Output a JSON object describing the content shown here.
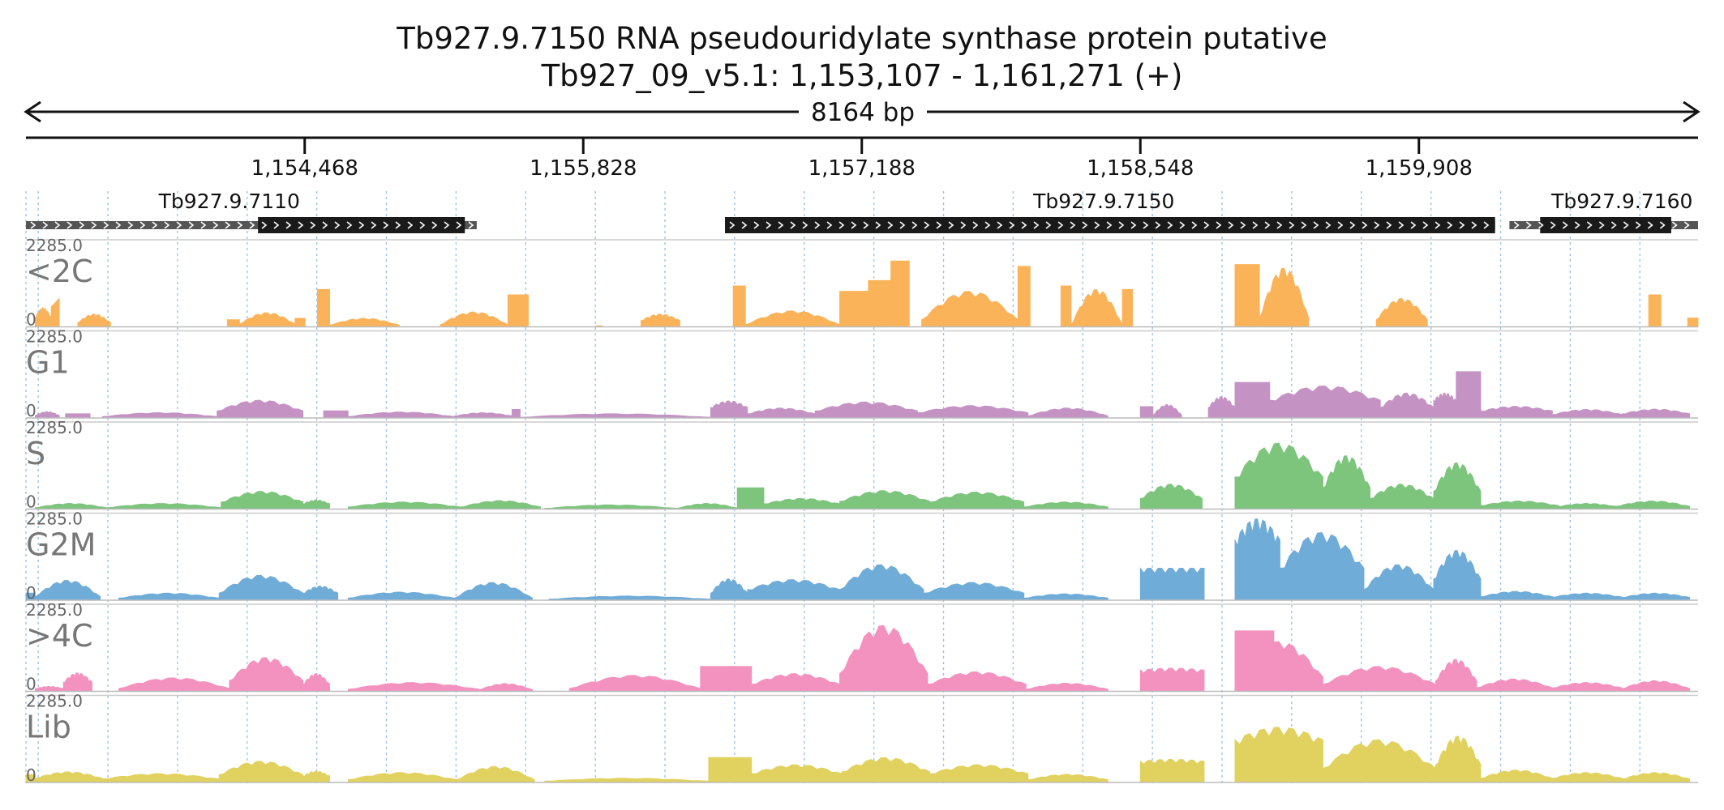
{
  "chart_data": {
    "type": "area",
    "title": "Tb927.9.7150  RNA pseudouridylate synthase protein  putative",
    "subtitle": "Tb927_09_v5.1: 1,153,107 - 1,161,271 (+)",
    "span_label": "8164 bp",
    "x_range": [
      1153107,
      1161271
    ],
    "ticks": [
      {
        "pos": 1154468,
        "label": "1,154,468"
      },
      {
        "pos": 1155828,
        "label": "1,155,828"
      },
      {
        "pos": 1157188,
        "label": "1,157,188"
      },
      {
        "pos": 1158548,
        "label": "1,158,548"
      },
      {
        "pos": 1159908,
        "label": "1,159,908"
      }
    ],
    "genes": [
      {
        "name": "Tb927.9.7110",
        "start": 1153107,
        "end": 1155308,
        "cds_start": 1154240,
        "cds_end": 1155250,
        "label_pos": 1154100
      },
      {
        "name": "Tb927.9.7150",
        "start": 1156520,
        "end": 1160280,
        "cds_start": 1156520,
        "cds_end": 1160280,
        "label_pos": 1158370
      },
      {
        "name": "Tb927.9.7160",
        "start": 1160350,
        "end": 1161271,
        "cds_start": 1160500,
        "cds_end": 1161140,
        "label_pos": 1160900
      }
    ],
    "ylim": [
      0,
      2285.0
    ],
    "scale_max_label": "2285.0",
    "scale_min_label": "0",
    "tracks": [
      {
        "name": "<2C",
        "color": "#fbb35a",
        "segments": [
          [
            1153152,
            1153230,
            260,
            540,
            "hump"
          ],
          [
            1153230,
            1153270,
            560,
            800,
            "edge"
          ],
          [
            1153360,
            1153520,
            120,
            360,
            "hump"
          ],
          [
            1154090,
            1154150,
            200,
            200,
            "flat"
          ],
          [
            1154150,
            1154420,
            80,
            400,
            "hump"
          ],
          [
            1154420,
            1154470,
            240,
            240,
            "flat"
          ],
          [
            1154530,
            1154590,
            1050,
            1050,
            "flat"
          ],
          [
            1154590,
            1154930,
            50,
            240,
            "hump"
          ],
          [
            1155130,
            1155460,
            60,
            420,
            "hump"
          ],
          [
            1155460,
            1155560,
            900,
            900,
            "flat"
          ],
          [
            1155890,
            1155920,
            30,
            30,
            "flat"
          ],
          [
            1156110,
            1156300,
            180,
            360,
            "hump"
          ],
          [
            1156560,
            1156620,
            1150,
            1150,
            "flat"
          ],
          [
            1156620,
            1157080,
            60,
            450,
            "hump"
          ],
          [
            1157080,
            1157220,
            1000,
            1000,
            "flat"
          ],
          [
            1157220,
            1157330,
            1300,
            1300,
            "flat"
          ],
          [
            1157330,
            1157420,
            1850,
            1850,
            "flat"
          ],
          [
            1157480,
            1157950,
            200,
            1000,
            "hump"
          ],
          [
            1157950,
            1158010,
            1700,
            1700,
            "flat"
          ],
          [
            1158160,
            1158210,
            1150,
            1150,
            "flat"
          ],
          [
            1158210,
            1158460,
            50,
            1050,
            "hump"
          ],
          [
            1158460,
            1158510,
            1050,
            1050,
            "flat"
          ],
          [
            1159010,
            1159130,
            1750,
            1750,
            "flat"
          ],
          [
            1159130,
            1159370,
            250,
            1650,
            "hump"
          ],
          [
            1159700,
            1159950,
            200,
            800,
            "hump"
          ],
          [
            1161030,
            1161090,
            900,
            900,
            "flat"
          ],
          [
            1161220,
            1161271,
            250,
            250,
            "flat"
          ]
        ]
      },
      {
        "name": "G1",
        "color": "#c493c4",
        "segments": [
          [
            1153152,
            1153270,
            70,
            180,
            "hump"
          ],
          [
            1153300,
            1153420,
            120,
            120,
            "flat"
          ],
          [
            1153480,
            1154040,
            40,
            150,
            "hump"
          ],
          [
            1154040,
            1154460,
            200,
            500,
            "hump"
          ],
          [
            1154560,
            1154680,
            200,
            200,
            "flat"
          ],
          [
            1154680,
            1155200,
            40,
            170,
            "hump"
          ],
          [
            1155200,
            1155480,
            60,
            150,
            "hump"
          ],
          [
            1155480,
            1155520,
            240,
            240,
            "flat"
          ],
          [
            1155520,
            1156450,
            20,
            120,
            "hump"
          ],
          [
            1156450,
            1156630,
            300,
            480,
            "hump"
          ],
          [
            1156630,
            1156960,
            120,
            280,
            "hump"
          ],
          [
            1156960,
            1157460,
            200,
            450,
            "hump"
          ],
          [
            1157460,
            1158000,
            150,
            350,
            "hump"
          ],
          [
            1158000,
            1158390,
            60,
            280,
            "hump"
          ],
          [
            1158548,
            1158610,
            320,
            320,
            "flat"
          ],
          [
            1158610,
            1158750,
            80,
            380,
            "hump"
          ],
          [
            1158880,
            1159010,
            300,
            600,
            "hump"
          ],
          [
            1159010,
            1159180,
            1000,
            1000,
            "flat"
          ],
          [
            1159180,
            1159720,
            500,
            900,
            "hump"
          ],
          [
            1159720,
            1159980,
            300,
            700,
            "hump"
          ],
          [
            1159980,
            1160090,
            500,
            700,
            "hump"
          ],
          [
            1160090,
            1160210,
            1300,
            1300,
            "flat"
          ],
          [
            1160210,
            1160560,
            200,
            330,
            "hump"
          ],
          [
            1160560,
            1160900,
            100,
            240,
            "hump"
          ],
          [
            1160900,
            1161230,
            120,
            250,
            "hump"
          ]
        ]
      },
      {
        "name": "S",
        "color": "#7dc47d",
        "segments": [
          [
            1153152,
            1153500,
            40,
            160,
            "hump"
          ],
          [
            1153500,
            1154060,
            40,
            160,
            "hump"
          ],
          [
            1154060,
            1154460,
            200,
            500,
            "hump"
          ],
          [
            1154460,
            1154590,
            150,
            260,
            "hump"
          ],
          [
            1154680,
            1155230,
            60,
            200,
            "hump"
          ],
          [
            1155230,
            1155620,
            60,
            240,
            "hump"
          ],
          [
            1155640,
            1156290,
            20,
            120,
            "hump"
          ],
          [
            1156290,
            1156580,
            30,
            160,
            "hump"
          ],
          [
            1156580,
            1156710,
            600,
            600,
            "flat"
          ],
          [
            1156710,
            1157080,
            150,
            300,
            "hump"
          ],
          [
            1157080,
            1157520,
            220,
            520,
            "hump"
          ],
          [
            1157520,
            1157980,
            200,
            480,
            "hump"
          ],
          [
            1157980,
            1158390,
            60,
            200,
            "hump"
          ],
          [
            1158548,
            1158850,
            300,
            700,
            "hump"
          ],
          [
            1159010,
            1159440,
            900,
            1850,
            "hump"
          ],
          [
            1159440,
            1159670,
            600,
            1500,
            "hump"
          ],
          [
            1159670,
            1159980,
            300,
            700,
            "hump"
          ],
          [
            1159980,
            1160210,
            500,
            1300,
            "hump"
          ],
          [
            1160210,
            1160590,
            100,
            230,
            "hump"
          ],
          [
            1160590,
            1160870,
            80,
            160,
            "hump"
          ],
          [
            1160870,
            1161230,
            80,
            230,
            "hump"
          ]
        ]
      },
      {
        "name": "G2M",
        "color": "#6facd8",
        "segments": [
          [
            1153107,
            1153152,
            200,
            200,
            "flat"
          ],
          [
            1153152,
            1153470,
            100,
            560,
            "hump"
          ],
          [
            1153560,
            1154050,
            60,
            200,
            "hump"
          ],
          [
            1154050,
            1154460,
            200,
            700,
            "hump"
          ],
          [
            1154460,
            1154630,
            200,
            400,
            "hump"
          ],
          [
            1154680,
            1155200,
            60,
            230,
            "hump"
          ],
          [
            1155200,
            1155580,
            60,
            500,
            "hump"
          ],
          [
            1155660,
            1156450,
            30,
            120,
            "hump"
          ],
          [
            1156450,
            1156630,
            200,
            600,
            "hump"
          ],
          [
            1156630,
            1157080,
            300,
            580,
            "hump"
          ],
          [
            1157080,
            1157490,
            300,
            1000,
            "hump"
          ],
          [
            1157490,
            1157980,
            200,
            500,
            "hump"
          ],
          [
            1157980,
            1158390,
            60,
            180,
            "hump"
          ],
          [
            1158548,
            1158860,
            900,
            900,
            "hump"
          ],
          [
            1159010,
            1159230,
            1700,
            2285,
            "hump"
          ],
          [
            1159230,
            1159640,
            900,
            1900,
            "hump"
          ],
          [
            1159640,
            1159980,
            300,
            1000,
            "hump"
          ],
          [
            1159980,
            1160210,
            600,
            1400,
            "hump"
          ],
          [
            1160210,
            1160560,
            100,
            250,
            "hump"
          ],
          [
            1160560,
            1160900,
            90,
            200,
            "hump"
          ],
          [
            1160900,
            1161230,
            80,
            200,
            "hump"
          ]
        ]
      },
      {
        "name": ">4C",
        "color": "#f492bf",
        "segments": [
          [
            1153152,
            1153290,
            80,
            140,
            "hump"
          ],
          [
            1153290,
            1153430,
            260,
            520,
            "hump"
          ],
          [
            1153560,
            1154100,
            80,
            380,
            "hump"
          ],
          [
            1154100,
            1154460,
            300,
            950,
            "hump"
          ],
          [
            1154460,
            1154590,
            200,
            500,
            "hump"
          ],
          [
            1154680,
            1155320,
            60,
            250,
            "hump"
          ],
          [
            1155320,
            1155580,
            50,
            220,
            "hump"
          ],
          [
            1155760,
            1156400,
            80,
            450,
            "hump"
          ],
          [
            1156400,
            1156550,
            700,
            700,
            "flat"
          ],
          [
            1156550,
            1156650,
            700,
            700,
            "flat"
          ],
          [
            1156650,
            1157080,
            200,
            500,
            "hump"
          ],
          [
            1157080,
            1157510,
            500,
            1850,
            "hump"
          ],
          [
            1157510,
            1157990,
            200,
            550,
            "hump"
          ],
          [
            1157990,
            1158390,
            60,
            230,
            "hump"
          ],
          [
            1158548,
            1158860,
            600,
            650,
            "hump"
          ],
          [
            1159010,
            1159200,
            1700,
            1700,
            "flat"
          ],
          [
            1159010,
            1159440,
            400,
            1400,
            "hump"
          ],
          [
            1159440,
            1159990,
            200,
            700,
            "hump"
          ],
          [
            1159990,
            1160190,
            300,
            900,
            "hump"
          ],
          [
            1160190,
            1160560,
            100,
            350,
            "hump"
          ],
          [
            1160560,
            1160900,
            100,
            250,
            "hump"
          ],
          [
            1160900,
            1161230,
            80,
            300,
            "hump"
          ]
        ]
      },
      {
        "name": "Lib",
        "color": "#e1d25f",
        "segments": [
          [
            1153107,
            1153152,
            220,
            220,
            "flat"
          ],
          [
            1153152,
            1153480,
            120,
            300,
            "hump"
          ],
          [
            1153480,
            1154050,
            100,
            250,
            "hump"
          ],
          [
            1154050,
            1154460,
            220,
            600,
            "hump"
          ],
          [
            1154460,
            1154590,
            180,
            320,
            "hump"
          ],
          [
            1154680,
            1155210,
            80,
            280,
            "hump"
          ],
          [
            1155210,
            1155590,
            80,
            450,
            "hump"
          ],
          [
            1155640,
            1156440,
            40,
            120,
            "hump"
          ],
          [
            1156440,
            1156650,
            700,
            700,
            "flat"
          ],
          [
            1156650,
            1157090,
            250,
            500,
            "hump"
          ],
          [
            1157090,
            1157520,
            300,
            700,
            "hump"
          ],
          [
            1157520,
            1158000,
            250,
            500,
            "hump"
          ],
          [
            1158000,
            1158390,
            80,
            230,
            "hump"
          ],
          [
            1158548,
            1158860,
            600,
            650,
            "hump"
          ],
          [
            1159010,
            1159440,
            1200,
            1550,
            "hump"
          ],
          [
            1159440,
            1159990,
            400,
            1200,
            "hump"
          ],
          [
            1159990,
            1160210,
            500,
            1300,
            "hump"
          ],
          [
            1160210,
            1160560,
            120,
            350,
            "hump"
          ],
          [
            1160560,
            1160900,
            120,
            280,
            "hump"
          ],
          [
            1160900,
            1161230,
            100,
            280,
            "hump"
          ]
        ]
      }
    ],
    "colors": {
      "gene_fill": "#1a1a1a",
      "utr_fill": "#555555",
      "grid": "#9ec3e4",
      "axis": "#111111",
      "baseline": "#bbbbbb"
    }
  }
}
